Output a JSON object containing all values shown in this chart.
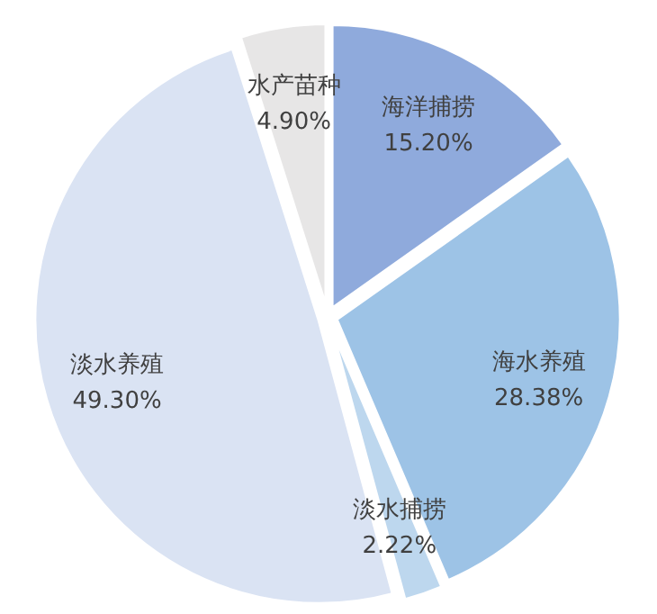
{
  "chart_data": {
    "type": "pie",
    "categories": [
      "海洋捕捞",
      "海水养殖",
      "淡水捕捞",
      "淡水养殖",
      "水产苗种"
    ],
    "values": [
      15.2,
      28.38,
      2.22,
      49.3,
      4.9
    ],
    "value_labels": [
      "15.20%",
      "28.38%",
      "2.22%",
      "49.30%",
      "4.90%"
    ],
    "colors": [
      "#8faadc",
      "#9dc3e6",
      "#bdd7ee",
      "#dae3f3",
      "#e7e6e6"
    ]
  }
}
